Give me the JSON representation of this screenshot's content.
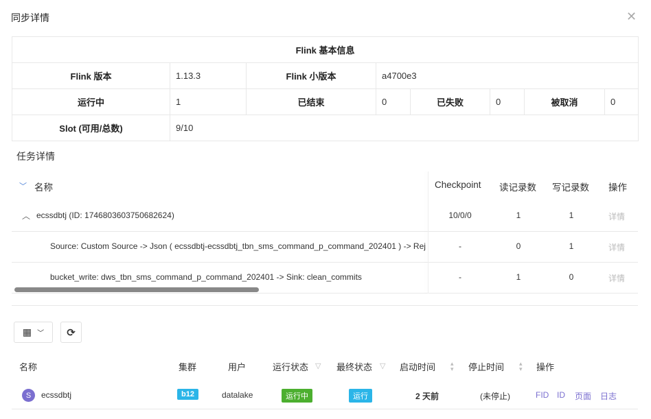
{
  "dialog": {
    "title": "同步详情",
    "close_icon": "close-icon"
  },
  "flink_info": {
    "header": "Flink 基本信息",
    "version_label": "Flink 版本",
    "version": "1.13.3",
    "minor_label": "Flink 小版本",
    "minor": "a4700e3",
    "running_label": "运行中",
    "running": "1",
    "finished_label": "已结束",
    "finished": "0",
    "failed_label": "已失败",
    "failed": "0",
    "canceled_label": "被取消",
    "canceled": "0",
    "slot_label": "Slot (可用/总数)",
    "slot": "9/10"
  },
  "task_details": {
    "label": "任务详情",
    "columns": {
      "name": "名称",
      "checkpoint": "Checkpoint",
      "read": "读记录数",
      "write": "写记录数",
      "op": "操作"
    },
    "rows": [
      {
        "name": "ecssdbtj (ID: 1746803603750682624)",
        "checkpoint": "10/0/0",
        "read": "1",
        "write": "1",
        "op": "详情"
      },
      {
        "name": "Source: Custom Source -> Json ( ecssdbtj-ecssdbtj_tbn_sms_command_p_command_202401 ) -> Rej",
        "checkpoint": "-",
        "read": "0",
        "write": "1",
        "op": "详情"
      },
      {
        "name": "bucket_write: dws_tbn_sms_command_p_command_202401 -> Sink: clean_commits",
        "checkpoint": "-",
        "read": "1",
        "write": "0",
        "op": "详情"
      }
    ]
  },
  "jobs": {
    "columns": {
      "name": "名称",
      "cluster": "集群",
      "user": "用户",
      "run_state": "运行状态",
      "final_state": "最终状态",
      "start": "启动时间",
      "stop": "停止时间",
      "op": "操作"
    },
    "rows": [
      {
        "avatar": "S",
        "name": "ecssdbtj",
        "cluster": "b12",
        "user": "datalake",
        "run_state": "运行中",
        "final_state": "运行",
        "start": "2 天前",
        "stop": "(未停止)",
        "actions": [
          "FID",
          "ID",
          "页面",
          "日志"
        ]
      }
    ]
  },
  "colors": {
    "cluster_tag": "#2bb5e8",
    "run_tag": "#4caf2f",
    "final_tag": "#2bb5e8",
    "avatar": "#7b6fd0",
    "link": "#7b6fd0"
  }
}
